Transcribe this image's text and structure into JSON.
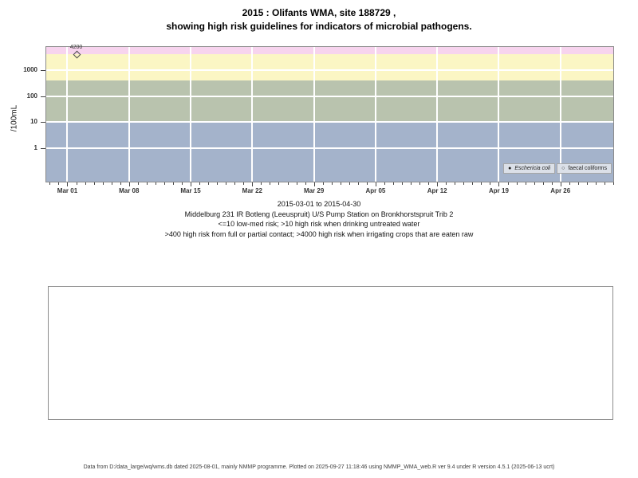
{
  "title": {
    "line1": "2015 : Olifants WMA, site 188729 ,",
    "line2": "showing high risk guidelines for indicators of microbial pathogens."
  },
  "subtitle_lines": {
    "line1": "2015-03-01 to 2015-04-30",
    "line2": "Middelburg 231 IR Botleng (Leeuspruit) U/S Pump Station on Bronkhorstspruit Trib 2",
    "line3": "<=10 low-med risk; >10 high risk when drinking untreated water",
    "line4": ">400 high risk from full or partial contact; >4000 high risk when irrigating crops that are eaten raw"
  },
  "footer": {
    "text": "Data from D:/data_large/wq/wms.db dated 2025-08-01, mainly NMMP programme. Plotted on 2025-09-27 11:18:46 using NMMP_WMA_web.R ver 9.4 under R version 4.5.1 (2025-06-13 ucrt)"
  },
  "chart_data": {
    "type": "scatter",
    "title": "2015 : Olifants WMA, site 188729 , showing high risk guidelines for indicators of microbial pathogens.",
    "xlabel": "",
    "ylabel": "/100mL",
    "y_scale": "log10",
    "ylim": [
      0.053,
      7700
    ],
    "y_ticks": [
      1,
      10,
      100,
      1000
    ],
    "x_start_date": "2015-03-01",
    "x_end_date": "2015-04-30",
    "x_range_days": [
      -2.4,
      62
    ],
    "x_minor_tick_every_days": 1,
    "grid": true,
    "grid_color": "#ffffff",
    "x_ticks": [
      {
        "day": 0,
        "label": "Mar 01"
      },
      {
        "day": 7,
        "label": "Mar 08"
      },
      {
        "day": 14,
        "label": "Mar 15"
      },
      {
        "day": 21,
        "label": "Mar 22"
      },
      {
        "day": 28,
        "label": "Mar 29"
      },
      {
        "day": 35,
        "label": "Apr 05"
      },
      {
        "day": 42,
        "label": "Apr 12"
      },
      {
        "day": 49,
        "label": "Apr 19"
      },
      {
        "day": 56,
        "label": "Apr 26"
      }
    ],
    "bands": [
      {
        "from": 4000,
        "to": null,
        "color": "#f7d4ee"
      },
      {
        "from": 400,
        "to": 4000,
        "color": "#fbf6c4"
      },
      {
        "from": 10,
        "to": 400,
        "color": "#b9c3ae"
      },
      {
        "from": null,
        "to": 10,
        "color": "#a4b3cb"
      }
    ],
    "series": [
      {
        "name": "Eschericia coli",
        "marker": "open-diamond",
        "points": [
          {
            "day": 1,
            "date": "2015-03-02",
            "value": 4200,
            "label": "4200"
          }
        ]
      },
      {
        "name": "faecal coliforms",
        "marker": "open-circle",
        "points": []
      }
    ],
    "legend": {
      "position": "inside-bottom-right",
      "items": [
        {
          "marker": "●",
          "label": "Eschericia coli",
          "italic": true
        },
        {
          "marker": "○",
          "label": "faecal coliforms",
          "italic": false
        }
      ]
    }
  }
}
